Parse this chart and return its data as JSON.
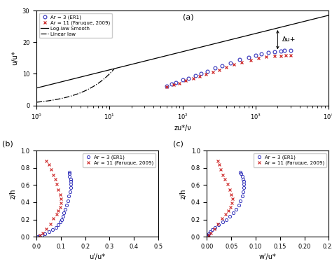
{
  "title_a": "(a)",
  "title_b": "(b)",
  "title_c": "(c)",
  "legend_ar3": "Ar = 3 (ER1)",
  "legend_ar11": "Ar = 11\n(Faruque, 2009)",
  "legend_loglaw": "Log-law Smooth",
  "legend_linear": "Linear law",
  "xlabel_a": "zu*/ν",
  "ylabel_a": "u/u*",
  "xlabel_b": "u'/u*",
  "ylabel_b": "z/h",
  "xlabel_c": "w'/u*",
  "ylabel_c": "z/h",
  "color_ar3": "#3333bb",
  "color_ar11": "#cc2222",
  "ar3_log_x": [
    60,
    70,
    80,
    100,
    120,
    150,
    180,
    220,
    280,
    350,
    450,
    600,
    800,
    1000,
    1200,
    1500,
    1800,
    2200,
    2500,
    3000
  ],
  "ar3_log_y": [
    6.2,
    6.8,
    7.3,
    8.0,
    8.6,
    9.4,
    10.1,
    10.8,
    11.8,
    12.6,
    13.5,
    14.5,
    15.3,
    15.8,
    16.2,
    16.7,
    17.0,
    17.2,
    17.4,
    17.5
  ],
  "ar11_log_x": [
    60,
    75,
    90,
    110,
    140,
    170,
    210,
    260,
    320,
    400,
    500,
    650,
    850,
    1100,
    1400,
    1800,
    2200,
    2600,
    3000
  ],
  "ar11_log_y": [
    5.8,
    6.5,
    7.1,
    7.8,
    8.5,
    9.2,
    9.9,
    10.6,
    11.3,
    12.1,
    12.9,
    13.7,
    14.4,
    15.0,
    15.4,
    15.6,
    15.7,
    15.8,
    15.9
  ],
  "ylim_a": [
    0,
    30
  ],
  "xlim_a_log": [
    1,
    10000
  ],
  "yticks_a": [
    0,
    10,
    20,
    30
  ],
  "delta_u_label": "Δu+",
  "ar3_b_x": [
    0.135,
    0.135,
    0.135,
    0.14,
    0.14,
    0.14,
    0.14,
    0.138,
    0.132,
    0.128,
    0.123,
    0.118,
    0.113,
    0.108,
    0.103,
    0.098,
    0.09,
    0.08,
    0.065,
    0.05,
    0.035,
    0.022,
    0.012,
    0.006
  ],
  "ar3_b_y": [
    0.75,
    0.73,
    0.7,
    0.67,
    0.64,
    0.61,
    0.57,
    0.52,
    0.47,
    0.42,
    0.37,
    0.32,
    0.28,
    0.24,
    0.2,
    0.17,
    0.14,
    0.11,
    0.08,
    0.055,
    0.035,
    0.02,
    0.01,
    0.005
  ],
  "ar11_b_x": [
    0.04,
    0.05,
    0.06,
    0.068,
    0.076,
    0.084,
    0.09,
    0.096,
    0.1,
    0.1,
    0.096,
    0.09,
    0.082,
    0.07,
    0.056,
    0.04,
    0.025,
    0.014
  ],
  "ar11_b_y": [
    0.88,
    0.84,
    0.78,
    0.72,
    0.67,
    0.61,
    0.55,
    0.49,
    0.44,
    0.39,
    0.34,
    0.3,
    0.26,
    0.21,
    0.15,
    0.09,
    0.04,
    0.015
  ],
  "ar3_c_x": [
    0.068,
    0.07,
    0.072,
    0.074,
    0.075,
    0.075,
    0.075,
    0.074,
    0.072,
    0.069,
    0.065,
    0.06,
    0.054,
    0.047,
    0.04,
    0.032,
    0.024,
    0.017,
    0.011,
    0.007,
    0.004,
    0.002,
    0.001,
    0.001
  ],
  "ar3_c_y": [
    0.75,
    0.73,
    0.7,
    0.67,
    0.64,
    0.61,
    0.57,
    0.52,
    0.47,
    0.42,
    0.37,
    0.32,
    0.28,
    0.24,
    0.2,
    0.17,
    0.14,
    0.11,
    0.08,
    0.055,
    0.035,
    0.02,
    0.01,
    0.005
  ],
  "ar11_c_x": [
    0.022,
    0.025,
    0.028,
    0.032,
    0.037,
    0.042,
    0.047,
    0.05,
    0.052,
    0.051,
    0.048,
    0.044,
    0.038,
    0.031,
    0.023,
    0.015,
    0.008,
    0.004
  ],
  "ar11_c_y": [
    0.88,
    0.84,
    0.78,
    0.72,
    0.67,
    0.61,
    0.55,
    0.49,
    0.44,
    0.39,
    0.34,
    0.3,
    0.26,
    0.21,
    0.15,
    0.09,
    0.04,
    0.015
  ],
  "xlim_b": [
    0,
    0.5
  ],
  "ylim_b": [
    0,
    1
  ],
  "xticks_b": [
    0,
    0.1,
    0.2,
    0.3,
    0.4,
    0.5
  ],
  "xlim_c": [
    0,
    0.25
  ],
  "ylim_c": [
    0,
    1
  ],
  "xticks_c": [
    0,
    0.05,
    0.1,
    0.15,
    0.2,
    0.25
  ],
  "yticks_bc": [
    0,
    0.2,
    0.4,
    0.6,
    0.8,
    1.0
  ]
}
